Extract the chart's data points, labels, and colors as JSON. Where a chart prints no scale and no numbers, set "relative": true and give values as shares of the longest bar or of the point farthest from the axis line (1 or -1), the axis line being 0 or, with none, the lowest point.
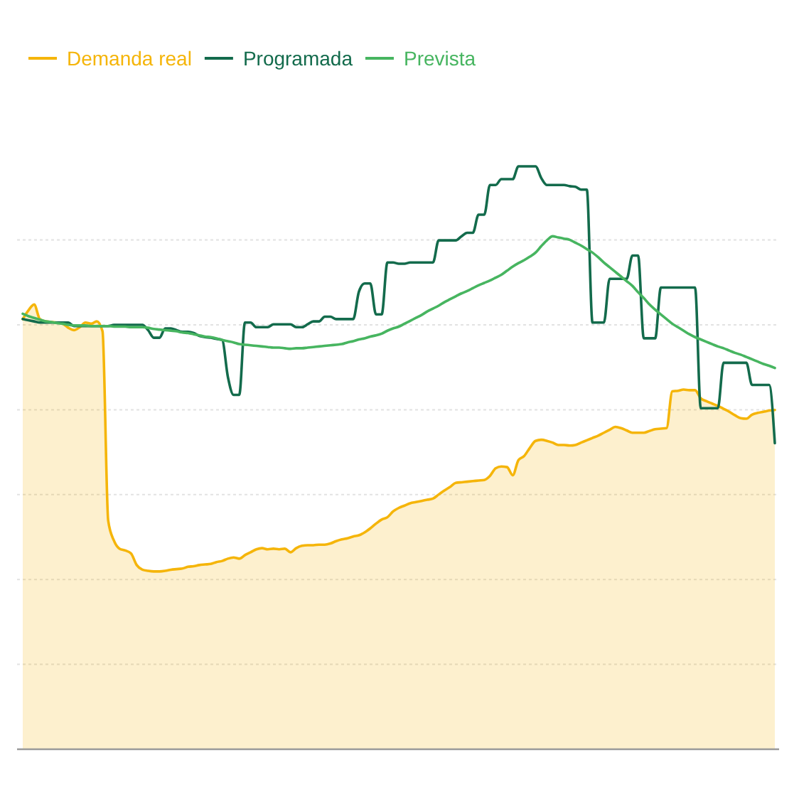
{
  "chart_data": {
    "type": "line",
    "relative": true,
    "grid": true,
    "legend": "top left",
    "categories": [
      null,
      null,
      null,
      null,
      null,
      null,
      null,
      null,
      null,
      null,
      null,
      null,
      null,
      null,
      null,
      null,
      null,
      null,
      null,
      null,
      null,
      null,
      null,
      null,
      null,
      null,
      null,
      null,
      null,
      null,
      null,
      null,
      null,
      null,
      null,
      null,
      null,
      null,
      null,
      null,
      null,
      null,
      null,
      null,
      null,
      null,
      null,
      null,
      null,
      null,
      null,
      null,
      null,
      null,
      null,
      null,
      null,
      null,
      null,
      null,
      null,
      null,
      null,
      null,
      null,
      null,
      null,
      null,
      null,
      null,
      null,
      null,
      null,
      null,
      null,
      null,
      null,
      null,
      null,
      null,
      null,
      null,
      null,
      null,
      null,
      null,
      null,
      null,
      null,
      null,
      null,
      null,
      null,
      null,
      null,
      null,
      null,
      null,
      null,
      null,
      null,
      null,
      null,
      null,
      null,
      null,
      null,
      null,
      null,
      null,
      null,
      null,
      null,
      null,
      null,
      null,
      null,
      null,
      null,
      null,
      null,
      null,
      null,
      null,
      null,
      null,
      null,
      null,
      null,
      null,
      null,
      null,
      null
    ],
    "series": [
      {
        "name": "Demanda real",
        "type": "area",
        "color": "#f5b50a",
        "values": [
          0.738,
          0.753,
          0.763,
          0.738,
          0.734,
          0.733,
          0.732,
          0.73,
          0.723,
          0.719,
          0.724,
          0.732,
          0.73,
          0.734,
          0.717,
          0.392,
          0.358,
          0.344,
          0.341,
          0.336,
          0.316,
          0.308,
          0.306,
          0.305,
          0.305,
          0.306,
          0.308,
          0.309,
          0.31,
          0.313,
          0.314,
          0.316,
          0.317,
          0.318,
          0.321,
          0.323,
          0.327,
          0.329,
          0.327,
          0.333,
          0.338,
          0.343,
          0.345,
          0.343,
          0.344,
          0.343,
          0.344,
          0.338,
          0.345,
          0.349,
          0.35,
          0.35,
          0.351,
          0.351,
          0.353,
          0.357,
          0.36,
          0.362,
          0.365,
          0.367,
          0.372,
          0.379,
          0.387,
          0.394,
          0.398,
          0.408,
          0.414,
          0.418,
          0.422,
          0.424,
          0.426,
          0.428,
          0.43,
          0.437,
          0.444,
          0.45,
          0.457,
          0.458,
          0.459,
          0.46,
          0.461,
          0.462,
          0.469,
          0.482,
          0.485,
          0.484,
          0.47,
          0.496,
          0.503,
          0.517,
          0.529,
          0.531,
          0.529,
          0.526,
          0.522,
          0.522,
          0.521,
          0.522,
          0.526,
          0.53,
          0.534,
          0.538,
          0.543,
          0.548,
          0.553,
          0.551,
          0.547,
          0.543,
          0.543,
          0.543,
          0.546,
          0.549,
          0.55,
          0.551,
          0.614,
          0.615,
          0.617,
          0.616,
          0.616,
          0.602,
          0.597,
          0.593,
          0.589,
          0.584,
          0.579,
          0.573,
          0.568,
          0.567,
          0.574,
          0.577,
          0.579,
          0.581,
          0.582
        ]
      },
      {
        "name": "Programada",
        "color": "#136b4c",
        "values": [
          0.738,
          0.736,
          0.734,
          0.732,
          0.732,
          0.732,
          0.732,
          0.732,
          0.732,
          0.726,
          0.726,
          0.726,
          0.726,
          0.726,
          0.726,
          0.726,
          0.728,
          0.728,
          0.728,
          0.728,
          0.728,
          0.728,
          0.719,
          0.706,
          0.706,
          0.722,
          0.722,
          0.719,
          0.716,
          0.716,
          0.714,
          0.709,
          0.707,
          0.706,
          0.704,
          0.702,
          0.639,
          0.608,
          0.608,
          0.732,
          0.732,
          0.724,
          0.724,
          0.724,
          0.729,
          0.729,
          0.729,
          0.729,
          0.724,
          0.724,
          0.729,
          0.734,
          0.734,
          0.742,
          0.742,
          0.738,
          0.738,
          0.738,
          0.738,
          0.785,
          0.799,
          0.799,
          0.746,
          0.746,
          0.835,
          0.835,
          0.833,
          0.833,
          0.835,
          0.835,
          0.835,
          0.835,
          0.835,
          0.873,
          0.873,
          0.873,
          0.873,
          0.88,
          0.886,
          0.886,
          0.917,
          0.917,
          0.968,
          0.968,
          0.978,
          0.978,
          0.978,
          1,
          1,
          1,
          1,
          0.98,
          0.968,
          0.968,
          0.968,
          0.968,
          0.966,
          0.965,
          0.96,
          0.96,
          0.732,
          0.732,
          0.732,
          0.807,
          0.807,
          0.807,
          0.807,
          0.847,
          0.847,
          0.705,
          0.705,
          0.705,
          0.792,
          0.792,
          0.792,
          0.792,
          0.792,
          0.792,
          0.792,
          0.585,
          0.585,
          0.585,
          0.585,
          0.663,
          0.663,
          0.663,
          0.663,
          0.663,
          0.625,
          0.625,
          0.625,
          0.625,
          0.525
        ]
      },
      {
        "name": "Prevista",
        "color": "#47b560",
        "values": [
          0.747,
          0.743,
          0.74,
          0.737,
          0.734,
          0.733,
          0.731,
          0.73,
          0.728,
          0.727,
          0.727,
          0.727,
          0.726,
          0.726,
          0.726,
          0.726,
          0.725,
          0.725,
          0.725,
          0.724,
          0.724,
          0.724,
          0.723,
          0.721,
          0.72,
          0.719,
          0.718,
          0.717,
          0.715,
          0.714,
          0.712,
          0.71,
          0.708,
          0.707,
          0.705,
          0.702,
          0.7,
          0.698,
          0.695,
          0.694,
          0.693,
          0.692,
          0.691,
          0.69,
          0.689,
          0.689,
          0.688,
          0.687,
          0.688,
          0.688,
          0.689,
          0.69,
          0.691,
          0.692,
          0.693,
          0.694,
          0.695,
          0.698,
          0.7,
          0.703,
          0.705,
          0.708,
          0.71,
          0.713,
          0.718,
          0.722,
          0.725,
          0.73,
          0.735,
          0.74,
          0.745,
          0.751,
          0.756,
          0.761,
          0.767,
          0.772,
          0.777,
          0.782,
          0.786,
          0.791,
          0.796,
          0.8,
          0.804,
          0.809,
          0.814,
          0.821,
          0.828,
          0.834,
          0.839,
          0.845,
          0.852,
          0.863,
          0.873,
          0.88,
          0.878,
          0.876,
          0.874,
          0.869,
          0.864,
          0.858,
          0.852,
          0.844,
          0.835,
          0.827,
          0.819,
          0.811,
          0.803,
          0.795,
          0.784,
          0.774,
          0.763,
          0.754,
          0.746,
          0.738,
          0.73,
          0.724,
          0.718,
          0.712,
          0.707,
          0.703,
          0.699,
          0.695,
          0.691,
          0.688,
          0.684,
          0.68,
          0.677,
          0.673,
          0.669,
          0.665,
          0.661,
          0.658,
          0.654
        ]
      }
    ]
  }
}
